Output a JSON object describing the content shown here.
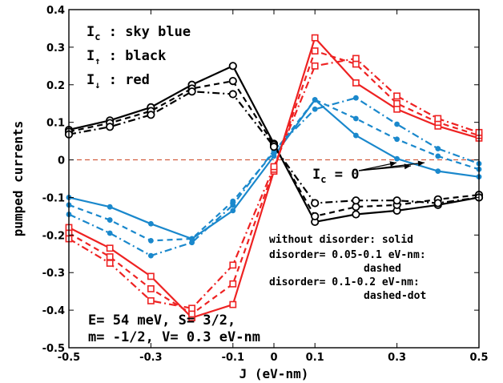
{
  "chart_data": {
    "type": "line",
    "xlabel": "J  (eV-nm)",
    "ylabel": "pumped currents",
    "xlim": [
      -0.5,
      0.5
    ],
    "ylim": [
      -0.5,
      0.4
    ],
    "x_ticks": [
      -0.5,
      -0.3,
      -0.1,
      0,
      0.1,
      0.3,
      0.5
    ],
    "x_tick_labels": [
      "-0.5",
      "-0.3",
      "-0.1",
      "0",
      "0.1",
      "0.3",
      "0.5"
    ],
    "y_ticks": [
      -0.5,
      -0.4,
      -0.3,
      -0.2,
      -0.1,
      0,
      0.1,
      0.2,
      0.3,
      0.4
    ],
    "y_tick_labels": [
      "-0.5",
      "-0.4",
      "-0.3",
      "-0.2",
      "-0.1",
      "0",
      "0.1",
      "0.2",
      "0.3",
      "0.4"
    ],
    "zero_line": {
      "color": "#cc4422"
    },
    "legend_lines": [
      {
        "main": "I",
        "sub": "c",
        "rest": " : sky blue"
      },
      {
        "main": "I",
        "sub": "↑",
        "rest": " : black"
      },
      {
        "main": "I",
        "sub": "↓",
        "rest": " : red"
      }
    ],
    "params_lines": [
      "E= 54 meV, S= 3/2,",
      "m= -1/2, V= 0.3 eV-nm"
    ],
    "notes": [
      "without disorder: solid",
      "disorder= 0.05-0.1 eV-nm:",
      "dashed",
      "disorder= 0.1-0.2 eV-nm:",
      "dashed-dot"
    ],
    "ic_annotation": {
      "main": "I",
      "sub": "c",
      "rest": " = 0"
    },
    "x": [
      -0.5,
      -0.4,
      -0.3,
      -0.2,
      -0.1,
      0,
      0.1,
      0.2,
      0.3,
      0.4,
      0.5
    ],
    "series": [
      {
        "group": "I_c",
        "style": "solid",
        "color": "#1a88cc",
        "marker": "dot",
        "values": [
          -0.1,
          -0.125,
          -0.17,
          -0.21,
          -0.135,
          0.01,
          0.16,
          0.065,
          0.003,
          -0.03,
          -0.045
        ]
      },
      {
        "group": "I_c",
        "style": "dashed",
        "color": "#1a88cc",
        "marker": "dot",
        "values": [
          -0.12,
          -0.16,
          -0.215,
          -0.21,
          -0.11,
          0.02,
          0.16,
          0.11,
          0.055,
          0.01,
          -0.025
        ]
      },
      {
        "group": "I_c",
        "style": "dashdot",
        "color": "#1a88cc",
        "marker": "dot",
        "values": [
          -0.145,
          -0.195,
          -0.255,
          -0.22,
          -0.12,
          0.025,
          0.135,
          0.165,
          0.095,
          0.03,
          -0.01
        ]
      },
      {
        "group": "I_up",
        "style": "solid",
        "color": "#000000",
        "marker": "circle",
        "values": [
          0.08,
          0.105,
          0.14,
          0.2,
          0.25,
          0.043,
          -0.165,
          -0.145,
          -0.135,
          -0.12,
          -0.1
        ]
      },
      {
        "group": "I_up",
        "style": "dashed",
        "color": "#000000",
        "marker": "circle",
        "values": [
          0.075,
          0.098,
          0.13,
          0.19,
          0.21,
          0.04,
          -0.15,
          -0.125,
          -0.12,
          -0.105,
          -0.093
        ]
      },
      {
        "group": "I_up",
        "style": "dashdot",
        "color": "#000000",
        "marker": "circle",
        "values": [
          0.068,
          0.088,
          0.12,
          0.182,
          0.175,
          0.035,
          -0.115,
          -0.108,
          -0.108,
          -0.115,
          -0.1
        ]
      },
      {
        "group": "I_down",
        "style": "solid",
        "color": "#ee2222",
        "marker": "square",
        "values": [
          -0.18,
          -0.235,
          -0.31,
          -0.42,
          -0.385,
          -0.03,
          0.325,
          0.205,
          0.135,
          0.09,
          0.058
        ]
      },
      {
        "group": "I_down",
        "style": "dashed",
        "color": "#ee2222",
        "marker": "square",
        "values": [
          -0.195,
          -0.258,
          -0.343,
          -0.41,
          -0.33,
          -0.025,
          0.29,
          0.255,
          0.15,
          0.1,
          0.065
        ]
      },
      {
        "group": "I_down",
        "style": "dashdot",
        "color": "#ee2222",
        "marker": "square",
        "values": [
          -0.21,
          -0.275,
          -0.375,
          -0.395,
          -0.28,
          -0.018,
          0.25,
          0.27,
          0.17,
          0.11,
          0.073
        ]
      }
    ]
  }
}
